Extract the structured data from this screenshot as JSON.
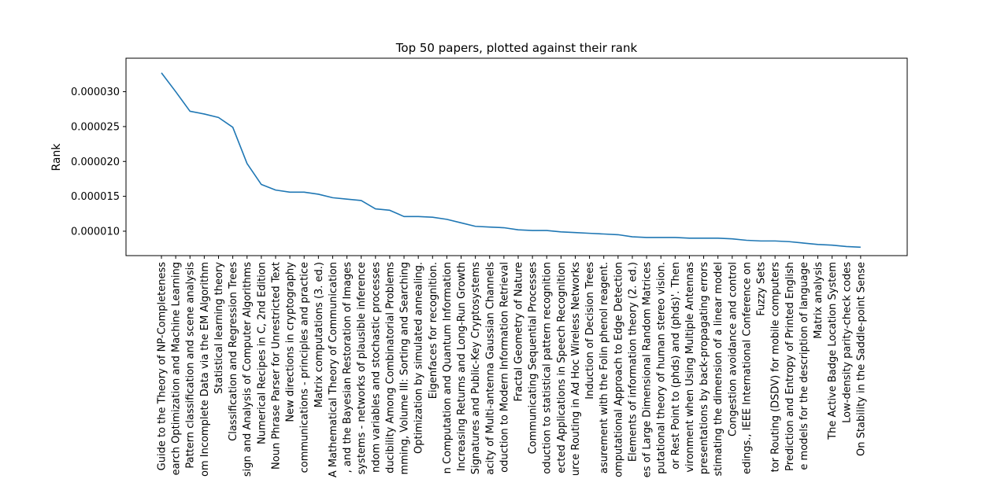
{
  "chart_data": {
    "type": "line",
    "title": "Top 50 papers, plotted against their rank",
    "xlabel": "",
    "ylabel": "Rank",
    "ylim": [
      6.5e-06,
      3.48e-05
    ],
    "yticks": [
      1e-05,
      1.5e-05,
      2e-05,
      2.5e-05,
      3e-05
    ],
    "ytick_labels": [
      "0.000010",
      "0.000015",
      "0.000020",
      "0.000025",
      "0.000030"
    ],
    "grid": false,
    "legend": "none",
    "line_color": "#1f77b4",
    "categories": [
      "Guide to the Theory of NP-Completeness",
      "earch Optimization and Machine Learning",
      "Pattern classification and scene analysis",
      "om Incomplete Data via the EM Algorithm",
      "Statistical learning theory",
      "Classification and Regression Trees",
      "sign and Analysis of Computer Algorithms",
      "Numerical Recipes in C, 2nd Edition",
      "Noun Phrase Parser for Unrestricted Text",
      "New directions in cryptography",
      "communications - principles and practice",
      "Matrix computations (3. ed.)",
      "A Mathematical Theory of Communication",
      ", and the Bayesian Restoration of Images",
      "systems - networks of plausible inference",
      "ndom variables and stochastic processes",
      "ducibility Among Combinatorial Problems",
      "mming, Volume III: Sorting and Searching",
      "Optimization by simulated annealing.",
      "Eigenfaces for recognition.",
      "n Computation and Quantum Information",
      "Increasing Returns and Long-Run Growth",
      "Signatures and Public-Key Cryptosystems",
      "acity of Multi-antenna Gaussian Channels",
      "oduction to Modern Information Retrieval",
      "Fractal Geometry of Nature",
      "Communicating Sequential Processes",
      "oduction to statistical pattern recognition",
      "ected Applications in Speech Recognition",
      "urce Routing in Ad Hoc Wireless Networks",
      "Induction of Decision Trees",
      "asurement with the Folin phenol reagent.",
      "omputational Approach to Edge Detection",
      "Elements of information theory (2. ed.)",
      "es of Large Dimensional Random Matrices",
      "putational theory of human stereo vision.",
      "or Rest Point to (phds) and (phds)'. Then",
      "vironment when Using Multiple Antennas",
      "presentations by back-propagating errors",
      "stimating the dimension of a linear model",
      "Congestion avoidance and control",
      "edings., IEEE International Conference on",
      "Fuzzy Sets",
      "tor Routing (DSDV) for mobile computers",
      "Prediction and Entropy of Printed English",
      "e models for the description of language",
      "Matrix analysis",
      "The Active Badge Location System",
      "Low-density parity-check codes",
      "On Stability in the Saddle-point Sense"
    ],
    "values": [
      3.27e-05,
      3e-05,
      2.72e-05,
      2.68e-05,
      2.63e-05,
      2.49e-05,
      1.97e-05,
      1.67e-05,
      1.59e-05,
      1.56e-05,
      1.56e-05,
      1.53e-05,
      1.48e-05,
      1.46e-05,
      1.44e-05,
      1.32e-05,
      1.3e-05,
      1.21e-05,
      1.21e-05,
      1.2e-05,
      1.17e-05,
      1.12e-05,
      1.07e-05,
      1.06e-05,
      1.05e-05,
      1.02e-05,
      1.01e-05,
      1.01e-05,
      9.9e-06,
      9.8e-06,
      9.7e-06,
      9.6e-06,
      9.5e-06,
      9.2e-06,
      9.1e-06,
      9.1e-06,
      9.1e-06,
      9e-06,
      9e-06,
      9e-06,
      8.9e-06,
      8.7e-06,
      8.6e-06,
      8.6e-06,
      8.5e-06,
      8.3e-06,
      8.1e-06,
      8e-06,
      7.8e-06,
      7.7e-06
    ]
  }
}
